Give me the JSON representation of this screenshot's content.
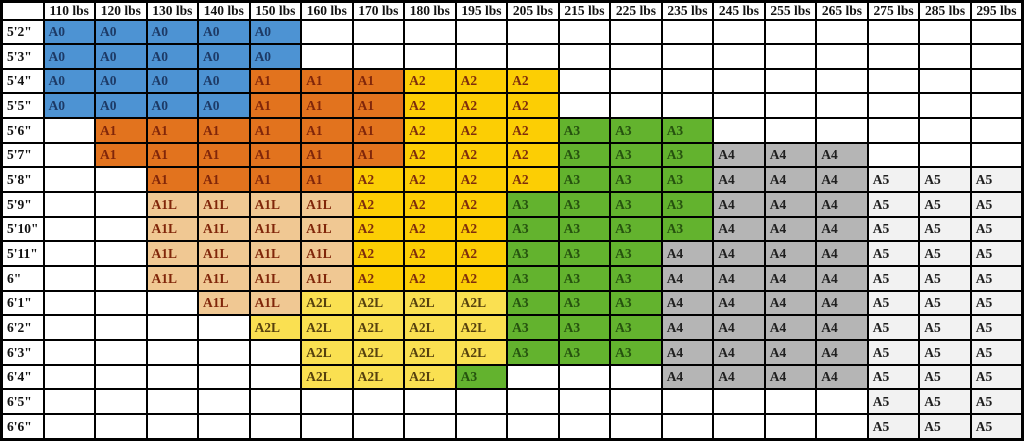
{
  "chart_data": {
    "type": "table",
    "corner_label": "",
    "columns": [
      "110 lbs",
      "120 lbs",
      "130 lbs",
      "140 lbs",
      "150 lbs",
      "160 lbs",
      "170 lbs",
      "180 lbs",
      "195 lbs",
      "205 lbs",
      "215 lbs",
      "225 lbs",
      "235 lbs",
      "245 lbs",
      "255 lbs",
      "265 lbs",
      "275 lbs",
      "285 lbs",
      "295 lbs"
    ],
    "rows": [
      {
        "height": "5'2\"",
        "cells": [
          "A0",
          "A0",
          "A0",
          "A0",
          "A0",
          "",
          "",
          "",
          "",
          "",
          "",
          "",
          "",
          "",
          "",
          "",
          "",
          "",
          ""
        ]
      },
      {
        "height": "5'3\"",
        "cells": [
          "A0",
          "A0",
          "A0",
          "A0",
          "A0",
          "",
          "",
          "",
          "",
          "",
          "",
          "",
          "",
          "",
          "",
          "",
          "",
          "",
          ""
        ]
      },
      {
        "height": "5'4\"",
        "cells": [
          "A0",
          "A0",
          "A0",
          "A0",
          "A1",
          "A1",
          "A1",
          "A2",
          "A2",
          "A2",
          "",
          "",
          "",
          "",
          "",
          "",
          "",
          "",
          ""
        ]
      },
      {
        "height": "5'5\"",
        "cells": [
          "A0",
          "A0",
          "A0",
          "A0",
          "A1",
          "A1",
          "A1",
          "A2",
          "A2",
          "A2",
          "",
          "",
          "",
          "",
          "",
          "",
          "",
          "",
          ""
        ]
      },
      {
        "height": "5'6\"",
        "cells": [
          "",
          "A1",
          "A1",
          "A1",
          "A1",
          "A1",
          "A1",
          "A2",
          "A2",
          "A2",
          "A3",
          "A3",
          "A3",
          "",
          "",
          "",
          "",
          "",
          ""
        ]
      },
      {
        "height": "5'7\"",
        "cells": [
          "",
          "A1",
          "A1",
          "A1",
          "A1",
          "A1",
          "A1",
          "A2",
          "A2",
          "A2",
          "A3",
          "A3",
          "A3",
          "A4",
          "A4",
          "A4",
          "",
          "",
          ""
        ]
      },
      {
        "height": "5'8\"",
        "cells": [
          "",
          "",
          "A1",
          "A1",
          "A1",
          "A1",
          "A2",
          "A2",
          "A2",
          "A2",
          "A3",
          "A3",
          "A3",
          "A4",
          "A4",
          "A4",
          "A5",
          "A5",
          "A5"
        ]
      },
      {
        "height": "5'9\"",
        "cells": [
          "",
          "",
          "A1L",
          "A1L",
          "A1L",
          "A1L",
          "A2",
          "A2",
          "A2",
          "A3",
          "A3",
          "A3",
          "A3",
          "A4",
          "A4",
          "A4",
          "A5",
          "A5",
          "A5"
        ]
      },
      {
        "height": "5'10\"",
        "cells": [
          "",
          "",
          "A1L",
          "A1L",
          "A1L",
          "A1L",
          "A2",
          "A2",
          "A2",
          "A3",
          "A3",
          "A3",
          "A3",
          "A4",
          "A4",
          "A4",
          "A5",
          "A5",
          "A5"
        ]
      },
      {
        "height": "5'11\"",
        "cells": [
          "",
          "",
          "A1L",
          "A1L",
          "A1L",
          "A1L",
          "A2",
          "A2",
          "A2",
          "A3",
          "A3",
          "A3",
          "A4",
          "A4",
          "A4",
          "A4",
          "A5",
          "A5",
          "A5"
        ]
      },
      {
        "height": "6\"",
        "cells": [
          "",
          "",
          "A1L",
          "A1L",
          "A1L",
          "A1L",
          "A2",
          "A2",
          "A2",
          "A3",
          "A3",
          "A3",
          "A4",
          "A4",
          "A4",
          "A4",
          "A5",
          "A5",
          "A5"
        ]
      },
      {
        "height": "6'1\"",
        "cells": [
          "",
          "",
          "",
          "A1L",
          "A1L",
          "A2L",
          "A2L",
          "A2L",
          "A2L",
          "A3",
          "A3",
          "A3",
          "A4",
          "A4",
          "A4",
          "A4",
          "A5",
          "A5",
          "A5"
        ]
      },
      {
        "height": "6'2\"",
        "cells": [
          "",
          "",
          "",
          "",
          "A2L",
          "A2L",
          "A2L",
          "A2L",
          "A2L",
          "A3",
          "A3",
          "A3",
          "A4",
          "A4",
          "A4",
          "A4",
          "A5",
          "A5",
          "A5"
        ]
      },
      {
        "height": "6'3\"",
        "cells": [
          "",
          "",
          "",
          "",
          "",
          "A2L",
          "A2L",
          "A2L",
          "A2L",
          "A3",
          "A3",
          "A3",
          "A4",
          "A4",
          "A4",
          "A4",
          "A5",
          "A5",
          "A5"
        ]
      },
      {
        "height": "6'4\"",
        "cells": [
          "",
          "",
          "",
          "",
          "",
          "A2L",
          "A2L",
          "A2L",
          "A3",
          "",
          "",
          "",
          "A4",
          "A4",
          "A4",
          "A4",
          "A5",
          "A5",
          "A5"
        ]
      },
      {
        "height": "6'5\"",
        "cells": [
          "",
          "",
          "",
          "",
          "",
          "",
          "",
          "",
          "",
          "",
          "",
          "",
          "",
          "",
          "",
          "",
          "A5",
          "A5",
          "A5"
        ]
      },
      {
        "height": "6'6\"",
        "cells": [
          "",
          "",
          "",
          "",
          "",
          "",
          "",
          "",
          "",
          "",
          "",
          "",
          "",
          "",
          "",
          "",
          "A5",
          "A5",
          "A5"
        ]
      }
    ]
  },
  "styles": {
    "grid_color": "#000000",
    "header_text_color": "#111111",
    "empty_cell_bg": "#ffffff",
    "size_colors": {
      "A0": {
        "bg": "#4d93d3",
        "text": "#1d3a66"
      },
      "A1": {
        "bg": "#e2731e",
        "text": "#80260a"
      },
      "A1L": {
        "bg": "#f0c893",
        "text": "#80260a"
      },
      "A2": {
        "bg": "#fcce04",
        "text": "#7e2d0d"
      },
      "A2L": {
        "bg": "#fae051",
        "text": "#55400e"
      },
      "A3": {
        "bg": "#63b32e",
        "text": "#26520f"
      },
      "A4": {
        "bg": "#b5b5b5",
        "text": "#202020"
      },
      "A5": {
        "bg": "#f2f2f2",
        "text": "#202020"
      }
    }
  }
}
